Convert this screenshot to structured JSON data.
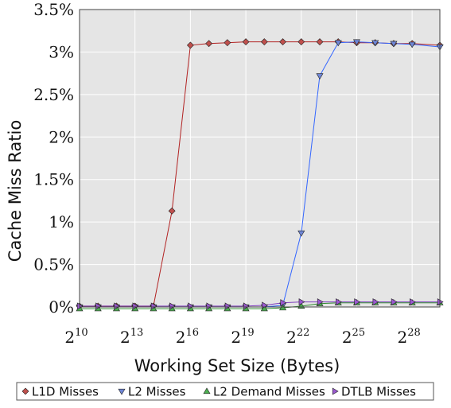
{
  "chart_data": {
    "type": "line",
    "title": "",
    "xlabel": "Working Set Size (Bytes)",
    "ylabel": "Cache Miss Ratio",
    "x_tick_labels": [
      {
        "base": "2",
        "exp": "10",
        "value": 10
      },
      {
        "base": "2",
        "exp": "13",
        "value": 13
      },
      {
        "base": "2",
        "exp": "16",
        "value": 16
      },
      {
        "base": "2",
        "exp": "19",
        "value": 19
      },
      {
        "base": "2",
        "exp": "22",
        "value": 22
      },
      {
        "base": "2",
        "exp": "25",
        "value": 25
      },
      {
        "base": "2",
        "exp": "28",
        "value": 28
      }
    ],
    "y_tick_labels": [
      "0%",
      "0.5%",
      "1%",
      "1.5%",
      "2%",
      "2.5%",
      "3%",
      "3.5%"
    ],
    "y_tick_values": [
      0,
      0.5,
      1,
      1.5,
      2,
      2.5,
      3,
      3.5
    ],
    "x_scale": "log2",
    "xlim": [
      10,
      29.5
    ],
    "ylim": [
      0,
      3.5
    ],
    "grid": true,
    "legend_position": "bottom",
    "background": "#e5e5e5",
    "series": [
      {
        "name": "L1D Misses",
        "marker": "diamond",
        "color": "#b22222",
        "fill": "#c0504d",
        "x": [
          10,
          11,
          12,
          13,
          14,
          15,
          16,
          17,
          18,
          19,
          20,
          21,
          22,
          23,
          24,
          25,
          26,
          27,
          28,
          29.5
        ],
        "y": [
          0.01,
          0.01,
          0.01,
          0.01,
          0.01,
          1.13,
          3.08,
          3.1,
          3.11,
          3.12,
          3.12,
          3.12,
          3.12,
          3.12,
          3.12,
          3.11,
          3.11,
          3.1,
          3.1,
          3.08
        ]
      },
      {
        "name": "L2 Misses",
        "marker": "triangle-down",
        "color": "#3366ff",
        "fill": "#6f86d6",
        "x": [
          10,
          11,
          12,
          13,
          14,
          15,
          16,
          17,
          18,
          19,
          20,
          21,
          22,
          23,
          24,
          25,
          26,
          27,
          28,
          29.5
        ],
        "y": [
          0,
          0,
          0,
          0,
          0,
          0,
          0,
          0,
          0,
          0,
          0,
          0.02,
          0.87,
          2.72,
          3.11,
          3.12,
          3.11,
          3.1,
          3.09,
          3.06
        ]
      },
      {
        "name": "L2 Demand Misses",
        "marker": "triangle-up",
        "color": "#2e8b2e",
        "fill": "#4caf50",
        "x": [
          10,
          11,
          12,
          13,
          14,
          15,
          16,
          17,
          18,
          19,
          20,
          21,
          22,
          23,
          24,
          25,
          26,
          27,
          28,
          29.5
        ],
        "y": [
          -0.02,
          -0.02,
          -0.02,
          -0.02,
          -0.02,
          -0.02,
          -0.02,
          -0.02,
          -0.02,
          -0.02,
          -0.02,
          -0.01,
          0.01,
          0.04,
          0.05,
          0.05,
          0.05,
          0.05,
          0.05,
          0.05
        ]
      },
      {
        "name": "DTLB Misses",
        "marker": "triangle-right",
        "color": "#8040bf",
        "fill": "#9b59d0",
        "x": [
          10,
          11,
          12,
          13,
          14,
          15,
          16,
          17,
          18,
          19,
          20,
          21,
          22,
          23,
          24,
          25,
          26,
          27,
          28,
          29.5
        ],
        "y": [
          0.01,
          0.01,
          0.01,
          0.01,
          0.01,
          0.01,
          0.01,
          0.01,
          0.01,
          0.01,
          0.02,
          0.05,
          0.06,
          0.06,
          0.06,
          0.06,
          0.06,
          0.06,
          0.06,
          0.06
        ]
      }
    ]
  }
}
